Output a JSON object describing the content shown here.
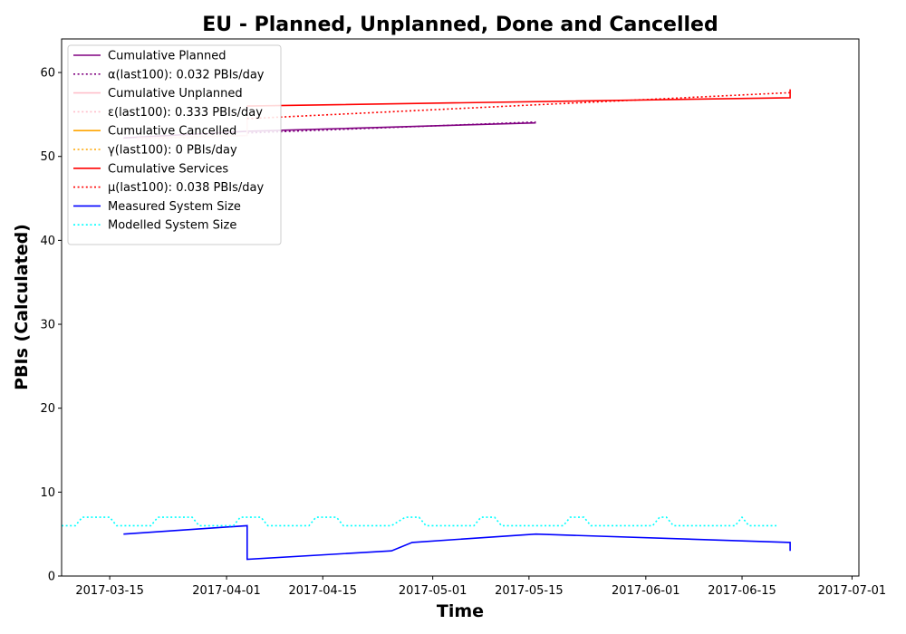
{
  "chart_data": {
    "type": "line",
    "title": "EU - Planned, Unplanned, Done  and Cancelled",
    "xlabel": "Time",
    "ylabel": "PBIs (Calculated)",
    "xlim": [
      "2017-03-08",
      "2017-07-02"
    ],
    "ylim": [
      0,
      64
    ],
    "x_ticks": [
      "2017-03-15",
      "2017-04-01",
      "2017-04-15",
      "2017-05-01",
      "2017-05-15",
      "2017-06-01",
      "2017-06-15",
      "2017-07-01"
    ],
    "y_ticks": [
      0,
      10,
      20,
      30,
      40,
      50,
      60
    ],
    "grid": false,
    "legend_position": "upper-left",
    "series": [
      {
        "name": "Cumulative Planned",
        "color": "#800080",
        "style": "solid",
        "points": [
          [
            "2017-03-17",
            52.2
          ],
          [
            "2017-04-04",
            53
          ],
          [
            "2017-05-16",
            54
          ]
        ]
      },
      {
        "name": "α(last100): 0.032 PBIs/day",
        "color": "#800080",
        "style": "dotted",
        "points": [
          [
            "2017-04-04",
            52.8
          ],
          [
            "2017-05-16",
            54.1
          ]
        ]
      },
      {
        "name": "Cumulative Unplanned",
        "color": "#ffc0cb",
        "style": "solid",
        "points": [
          [
            "2017-03-19",
            52.2
          ],
          [
            "2017-04-04",
            52.5
          ],
          [
            "2017-04-04",
            56
          ],
          [
            "2017-04-05",
            56
          ]
        ]
      },
      {
        "name": "ε(last100): 0.333 PBIs/day",
        "color": "#ffc0cb",
        "style": "dotted",
        "points": [
          [
            "2017-03-19",
            52.0
          ],
          [
            "2017-04-04",
            52.5
          ]
        ]
      },
      {
        "name": "Cumulative Cancelled",
        "color": "#ffa500",
        "style": "solid",
        "points": []
      },
      {
        "name": "γ(last100): 0 PBIs/day",
        "color": "#ffa500",
        "style": "dotted",
        "points": []
      },
      {
        "name": "Cumulative Services",
        "color": "#ff0000",
        "style": "solid",
        "points": [
          [
            "2017-04-04",
            56
          ],
          [
            "2017-06-22",
            57
          ],
          [
            "2017-06-22",
            58
          ]
        ]
      },
      {
        "name": "μ(last100): 0.038 PBIs/day",
        "color": "#ff0000",
        "style": "dotted",
        "points": [
          [
            "2017-04-04",
            54.5
          ],
          [
            "2017-06-22",
            57.6
          ]
        ]
      },
      {
        "name": "Measured System Size",
        "color": "#0000ff",
        "style": "solid",
        "points": [
          [
            "2017-03-17",
            5
          ],
          [
            "2017-04-04",
            6
          ],
          [
            "2017-04-04",
            2
          ],
          [
            "2017-04-25",
            3
          ],
          [
            "2017-04-28",
            4
          ],
          [
            "2017-05-16",
            5
          ],
          [
            "2017-06-22",
            4
          ],
          [
            "2017-06-22",
            3
          ]
        ]
      },
      {
        "name": "Modelled System Size",
        "color": "#00ffff",
        "style": "dotted",
        "points": [
          [
            "2017-03-08",
            6
          ],
          [
            "2017-03-10",
            6
          ],
          [
            "2017-03-11",
            7
          ],
          [
            "2017-03-15",
            7
          ],
          [
            "2017-03-16",
            6
          ],
          [
            "2017-03-21",
            6
          ],
          [
            "2017-03-22",
            7
          ],
          [
            "2017-03-27",
            7
          ],
          [
            "2017-03-28",
            6
          ],
          [
            "2017-04-02",
            6
          ],
          [
            "2017-04-03",
            7
          ],
          [
            "2017-04-06",
            7
          ],
          [
            "2017-04-07",
            6
          ],
          [
            "2017-04-13",
            6
          ],
          [
            "2017-04-14",
            7
          ],
          [
            "2017-04-17",
            7
          ],
          [
            "2017-04-18",
            6
          ],
          [
            "2017-04-25",
            6
          ],
          [
            "2017-04-27",
            7
          ],
          [
            "2017-04-29",
            7
          ],
          [
            "2017-04-30",
            6
          ],
          [
            "2017-05-07",
            6
          ],
          [
            "2017-05-08",
            7
          ],
          [
            "2017-05-10",
            7
          ],
          [
            "2017-05-11",
            6
          ],
          [
            "2017-05-20",
            6
          ],
          [
            "2017-05-21",
            7
          ],
          [
            "2017-05-23",
            7
          ],
          [
            "2017-05-24",
            6
          ],
          [
            "2017-06-02",
            6
          ],
          [
            "2017-06-03",
            7
          ],
          [
            "2017-06-04",
            7
          ],
          [
            "2017-06-05",
            6
          ],
          [
            "2017-06-14",
            6
          ],
          [
            "2017-06-15",
            7
          ],
          [
            "2017-06-16",
            6
          ],
          [
            "2017-06-20",
            6
          ]
        ]
      }
    ]
  }
}
